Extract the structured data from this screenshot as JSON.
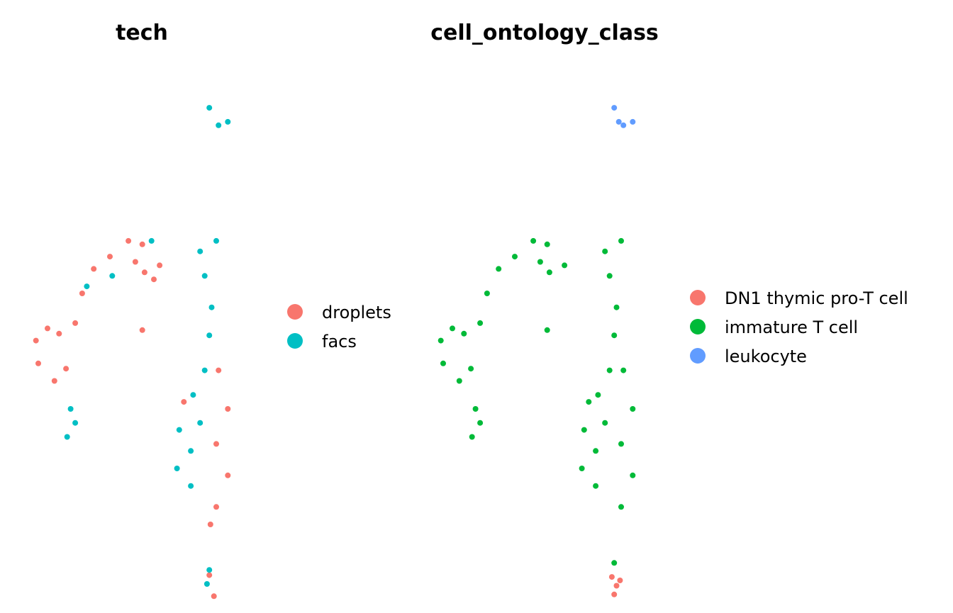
{
  "chart_data": [
    {
      "type": "scatter",
      "title": "tech",
      "xlabel": "",
      "ylabel": "",
      "grid": false,
      "legend_position": "right",
      "series": [
        {
          "name": "droplets",
          "color": "#F8766D",
          "points": [
            [
              -11.0,
              0.5
            ],
            [
              -10.0,
              1.2
            ],
            [
              -9.0,
              0.9
            ],
            [
              -7.6,
              1.5
            ],
            [
              -10.8,
              -0.8
            ],
            [
              -9.4,
              -1.8
            ],
            [
              -8.4,
              -1.1
            ],
            [
              -7.0,
              3.2
            ],
            [
              -6.0,
              4.6
            ],
            [
              -4.6,
              5.3
            ],
            [
              -3.0,
              6.2
            ],
            [
              -1.8,
              6.0
            ],
            [
              -2.4,
              5.0
            ],
            [
              -1.6,
              4.4
            ],
            [
              -0.3,
              4.8
            ],
            [
              1.8,
              -3.0
            ],
            [
              4.8,
              -1.2
            ],
            [
              5.6,
              -3.4
            ],
            [
              4.6,
              -5.4
            ],
            [
              5.6,
              -7.2
            ],
            [
              4.6,
              -9.0
            ],
            [
              4.1,
              -10.0
            ],
            [
              4.0,
              -12.9
            ],
            [
              4.4,
              -14.1
            ],
            [
              -1.8,
              1.1
            ],
            [
              -0.8,
              4.0
            ]
          ]
        },
        {
          "name": "facs",
          "color": "#00BFC4",
          "points": [
            [
              3.2,
              5.6
            ],
            [
              4.6,
              6.2
            ],
            [
              3.6,
              4.2
            ],
            [
              4.2,
              2.4
            ],
            [
              4.0,
              0.8
            ],
            [
              3.6,
              -1.2
            ],
            [
              2.6,
              -2.6
            ],
            [
              1.4,
              -4.6
            ],
            [
              2.4,
              -5.8
            ],
            [
              3.2,
              -4.2
            ],
            [
              1.2,
              -6.8
            ],
            [
              2.4,
              -7.8
            ],
            [
              -8.0,
              -3.4
            ],
            [
              -8.3,
              -5.0
            ],
            [
              -7.6,
              -4.2
            ],
            [
              3.8,
              -13.4
            ],
            [
              4.0,
              -12.6
            ],
            [
              4.0,
              13.8
            ],
            [
              4.8,
              12.8
            ],
            [
              5.6,
              13.0
            ],
            [
              -4.4,
              4.2
            ],
            [
              -6.6,
              3.6
            ],
            [
              -1.0,
              6.2
            ]
          ]
        }
      ]
    },
    {
      "type": "scatter",
      "title": "cell_ontology_class",
      "xlabel": "",
      "ylabel": "",
      "grid": false,
      "legend_position": "right",
      "series": [
        {
          "name": "DN1 thymic pro-T cell",
          "color": "#F8766D",
          "points": [
            [
              3.8,
              -13.0
            ],
            [
              4.2,
              -13.5
            ],
            [
              4.0,
              -14.0
            ],
            [
              4.5,
              -13.2
            ]
          ]
        },
        {
          "name": "immature T cell",
          "color": "#00BA38",
          "points": [
            [
              -11.0,
              0.5
            ],
            [
              -10.0,
              1.2
            ],
            [
              -9.0,
              0.9
            ],
            [
              -7.6,
              1.5
            ],
            [
              -10.8,
              -0.8
            ],
            [
              -9.4,
              -1.8
            ],
            [
              -8.4,
              -1.1
            ],
            [
              -7.0,
              3.2
            ],
            [
              -6.0,
              4.6
            ],
            [
              -4.6,
              5.3
            ],
            [
              -3.0,
              6.2
            ],
            [
              -1.8,
              6.0
            ],
            [
              -2.4,
              5.0
            ],
            [
              -1.6,
              4.4
            ],
            [
              -0.3,
              4.8
            ],
            [
              3.2,
              5.6
            ],
            [
              4.6,
              6.2
            ],
            [
              3.6,
              4.2
            ],
            [
              4.2,
              2.4
            ],
            [
              4.0,
              0.8
            ],
            [
              3.6,
              -1.2
            ],
            [
              1.8,
              -3.0
            ],
            [
              2.6,
              -2.6
            ],
            [
              4.8,
              -1.2
            ],
            [
              1.4,
              -4.6
            ],
            [
              2.4,
              -5.8
            ],
            [
              3.2,
              -4.2
            ],
            [
              5.6,
              -3.4
            ],
            [
              4.6,
              -5.4
            ],
            [
              1.2,
              -6.8
            ],
            [
              2.4,
              -7.8
            ],
            [
              5.6,
              -7.2
            ],
            [
              4.6,
              -9.0
            ],
            [
              -8.0,
              -3.4
            ],
            [
              -8.3,
              -5.0
            ],
            [
              -7.6,
              -4.2
            ],
            [
              -1.8,
              1.1
            ],
            [
              4.0,
              -12.2
            ]
          ]
        },
        {
          "name": "leukocyte",
          "color": "#619CFF",
          "points": [
            [
              4.0,
              13.8
            ],
            [
              4.4,
              13.0
            ],
            [
              4.8,
              12.8
            ],
            [
              5.6,
              13.0
            ]
          ]
        }
      ]
    }
  ]
}
